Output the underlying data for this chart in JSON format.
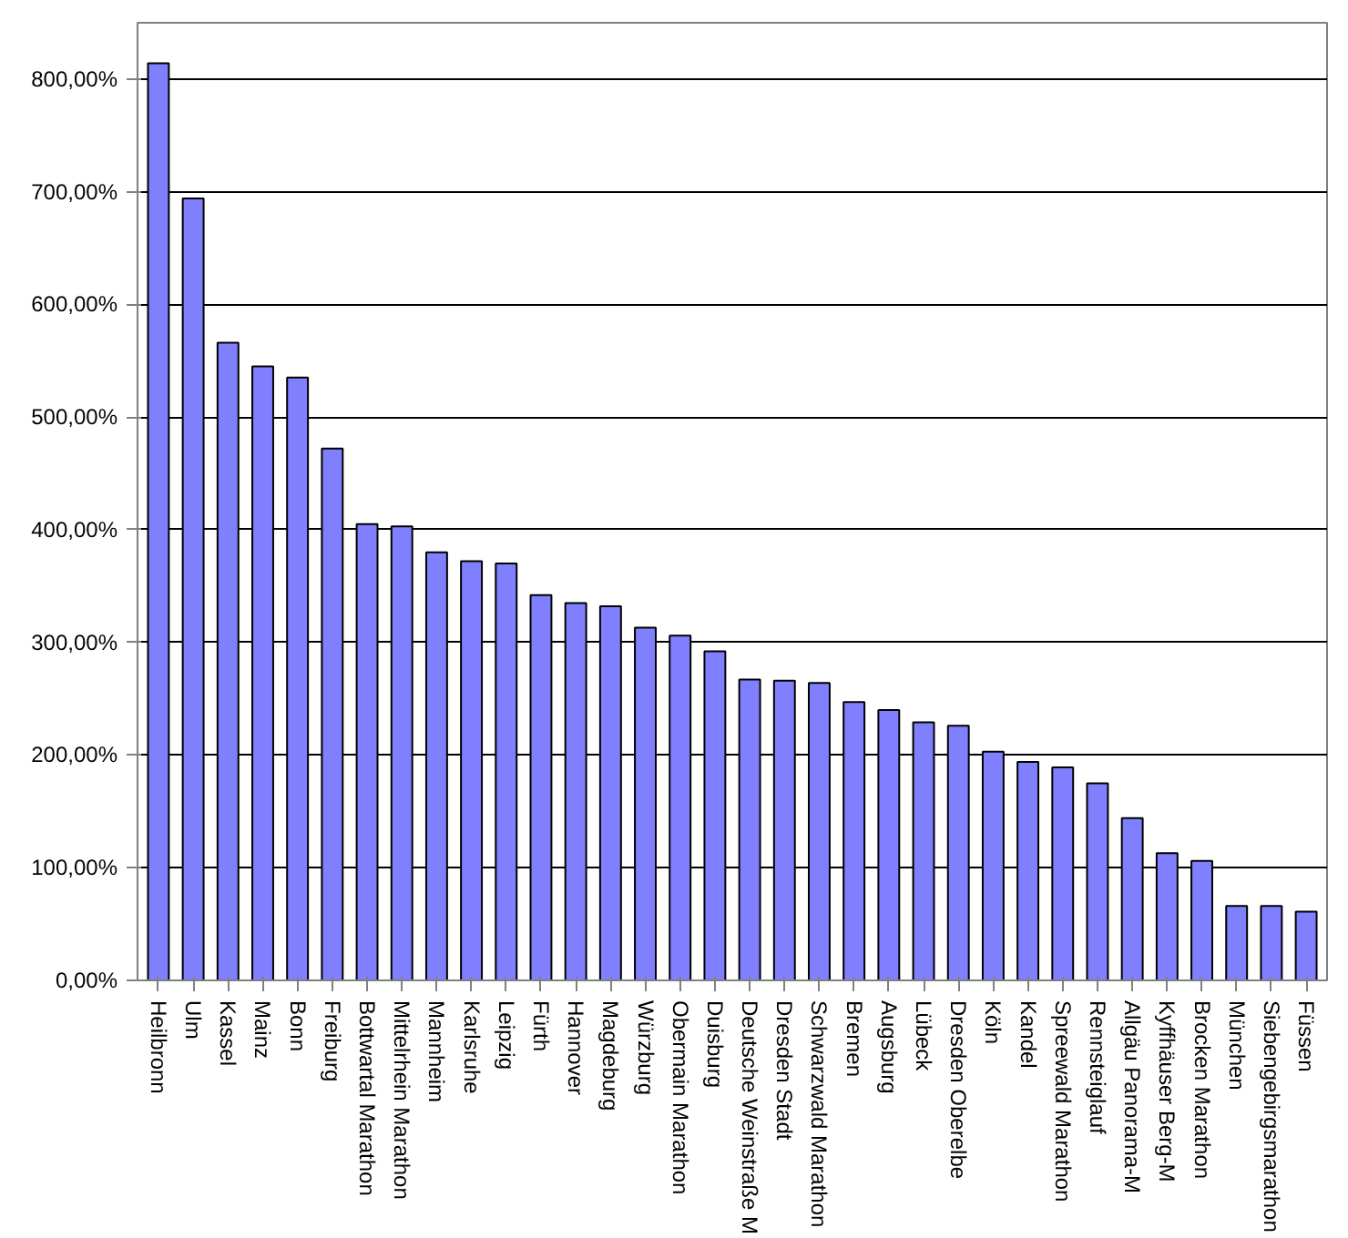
{
  "chart_data": {
    "type": "bar",
    "categories": [
      "Heilbronn",
      "Ulm",
      "Kassel",
      "Mainz",
      "Bonn",
      "Freiburg",
      "Bottwartal Marathon",
      "Mittelrhein Marathon",
      "Mannheim",
      "Karlsruhe",
      "Leipzig",
      "Fürth",
      "Hannover",
      "Magdeburg",
      "Würzburg",
      "Obermain Marathon",
      "Duisburg",
      "Deutsche Weinstraße M",
      "Dresden Stadt",
      "Schwarzwald Marathon",
      "Bremen",
      "Augsburg",
      "Lübeck",
      "Dresden Oberelbe",
      "Köln",
      "Kandel",
      "Spreewald Marathon",
      "Rennsteiglauf",
      "Allgäu Panorama-M",
      "Kyffhäuser Berg-M",
      "Brocken Marathon",
      "München",
      "Siebengebirgsmarathon",
      "Füssen"
    ],
    "values": [
      814,
      694,
      566,
      545,
      535,
      472,
      405,
      403,
      380,
      372,
      370,
      342,
      335,
      332,
      313,
      306,
      292,
      267,
      266,
      264,
      247,
      240,
      229,
      226,
      203,
      194,
      189,
      175,
      144,
      113,
      106,
      66,
      66,
      61
    ],
    "color": "#8080ff",
    "ylim": [
      0,
      850
    ],
    "yticks": [
      {
        "value": 0,
        "label": "0,00%"
      },
      {
        "value": 100,
        "label": "100,00%"
      },
      {
        "value": 200,
        "label": "200,00%"
      },
      {
        "value": 300,
        "label": "300,00%"
      },
      {
        "value": 400,
        "label": "400,00%"
      },
      {
        "value": 500,
        "label": "500,00%"
      },
      {
        "value": 600,
        "label": "600,00%"
      },
      {
        "value": 700,
        "label": "700,00%"
      },
      {
        "value": 800,
        "label": "800,00%"
      }
    ],
    "grid": "y"
  }
}
